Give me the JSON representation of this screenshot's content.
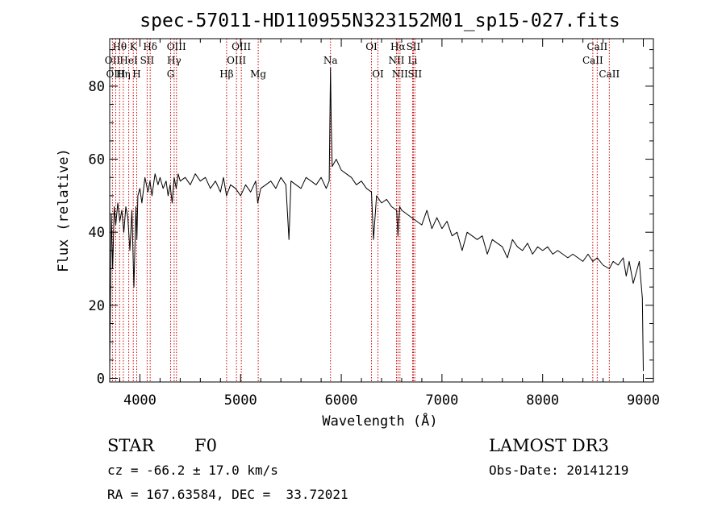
{
  "chart_data": {
    "type": "line",
    "title": "spec-57011-HD110955N323152M01_sp15-027.fits",
    "xlabel": "Wavelength (Å)",
    "ylabel": "Flux (relative)",
    "xlim": [
      3700,
      9100
    ],
    "ylim": [
      -1,
      93
    ],
    "xticks": [
      4000,
      5000,
      6000,
      7000,
      8000,
      9000
    ],
    "yticks": [
      0,
      20,
      40,
      60,
      80
    ],
    "grid": false,
    "series": [
      {
        "name": "spectrum",
        "x": [
          3700,
          3715,
          3730,
          3745,
          3760,
          3780,
          3800,
          3820,
          3840,
          3860,
          3880,
          3900,
          3920,
          3940,
          3960,
          3970,
          3980,
          4000,
          4020,
          4050,
          4080,
          4100,
          4120,
          4150,
          4180,
          4200,
          4230,
          4260,
          4280,
          4300,
          4320,
          4340,
          4360,
          4380,
          4400,
          4450,
          4500,
          4550,
          4600,
          4650,
          4700,
          4750,
          4800,
          4830,
          4860,
          4900,
          4950,
          5000,
          5050,
          5100,
          5150,
          5170,
          5200,
          5250,
          5300,
          5350,
          5400,
          5450,
          5480,
          5500,
          5550,
          5600,
          5650,
          5700,
          5750,
          5800,
          5850,
          5880,
          5893,
          5900,
          5910,
          5950,
          6000,
          6050,
          6100,
          6150,
          6200,
          6250,
          6300,
          6320,
          6350,
          6400,
          6450,
          6500,
          6550,
          6563,
          6580,
          6600,
          6650,
          6700,
          6750,
          6800,
          6850,
          6900,
          6950,
          7000,
          7050,
          7100,
          7150,
          7200,
          7250,
          7300,
          7350,
          7400,
          7450,
          7500,
          7550,
          7600,
          7650,
          7700,
          7750,
          7800,
          7850,
          7900,
          7950,
          8000,
          8050,
          8100,
          8150,
          8200,
          8250,
          8300,
          8350,
          8400,
          8450,
          8498,
          8542,
          8600,
          8662,
          8700,
          8750,
          8800,
          8830,
          8860,
          8900,
          8930,
          8960,
          8990,
          9000
        ],
        "values": [
          2,
          45,
          30,
          47,
          42,
          48,
          43,
          46,
          40,
          47,
          44,
          35,
          46,
          25,
          47,
          38,
          50,
          52,
          48,
          55,
          51,
          54,
          50,
          56,
          53,
          55,
          52,
          54,
          50,
          53,
          48,
          55,
          52,
          56,
          54,
          55,
          53,
          56,
          54,
          55,
          52,
          54,
          51,
          55,
          50,
          53,
          52,
          50,
          53,
          51,
          54,
          48,
          52,
          53,
          54,
          52,
          55,
          53,
          38,
          54,
          53,
          52,
          55,
          54,
          53,
          55,
          52,
          54,
          85,
          70,
          58,
          60,
          57,
          56,
          55,
          53,
          54,
          52,
          51,
          38,
          50,
          48,
          49,
          47,
          46,
          39,
          47,
          46,
          45,
          44,
          43,
          42,
          46,
          41,
          44,
          41,
          43,
          39,
          40,
          35,
          40,
          39,
          38,
          39,
          34,
          38,
          37,
          36,
          33,
          38,
          36,
          35,
          37,
          34,
          36,
          35,
          36,
          34,
          35,
          34,
          33,
          34,
          33,
          32,
          34,
          32,
          33,
          31,
          30,
          32,
          31,
          33,
          28,
          32,
          26,
          29,
          32,
          22,
          2
        ]
      }
    ],
    "line_labels": [
      {
        "text": "Hθ",
        "wavelength": 3798,
        "row": 1
      },
      {
        "text": "OII",
        "wavelength": 3727,
        "row": 2
      },
      {
        "text": "OIII",
        "wavelength": 3760,
        "row": 3
      },
      {
        "text": "K",
        "wavelength": 3934,
        "row": 1
      },
      {
        "text": "HeI",
        "wavelength": 3889,
        "row": 2
      },
      {
        "text": "Hη",
        "wavelength": 3835,
        "row": 3
      },
      {
        "text": "Hδ",
        "wavelength": 4102,
        "row": 1
      },
      {
        "text": "SII",
        "wavelength": 4072,
        "row": 2
      },
      {
        "text": "H",
        "wavelength": 3968,
        "row": 3
      },
      {
        "text": "OIII",
        "wavelength": 4363,
        "row": 1
      },
      {
        "text": "Hγ",
        "wavelength": 4340,
        "row": 2
      },
      {
        "text": "G",
        "wavelength": 4305,
        "row": 3
      },
      {
        "text": "OIII",
        "wavelength": 5007,
        "row": 1
      },
      {
        "text": "OIII",
        "wavelength": 4959,
        "row": 2
      },
      {
        "text": "Hβ",
        "wavelength": 4861,
        "row": 3
      },
      {
        "text": "Mg",
        "wavelength": 5175,
        "row": 3
      },
      {
        "text": "Na",
        "wavelength": 5893,
        "row": 2
      },
      {
        "text": "OI",
        "wavelength": 6300,
        "row": 1
      },
      {
        "text": "OI",
        "wavelength": 6364,
        "row": 3
      },
      {
        "text": "Hα",
        "wavelength": 6563,
        "row": 1
      },
      {
        "text": "SII",
        "wavelength": 6716,
        "row": 1
      },
      {
        "text": "NII",
        "wavelength": 6548,
        "row": 2
      },
      {
        "text": "Li",
        "wavelength": 6708,
        "row": 2
      },
      {
        "text": "NII",
        "wavelength": 6583,
        "row": 3
      },
      {
        "text": "SII",
        "wavelength": 6731,
        "row": 3
      },
      {
        "text": "CaII",
        "wavelength": 8542,
        "row": 1
      },
      {
        "text": "CaII",
        "wavelength": 8498,
        "row": 2
      },
      {
        "text": "CaII",
        "wavelength": 8662,
        "row": 3
      }
    ],
    "marker_lines": [
      3727,
      3760,
      3798,
      3835,
      3889,
      3934,
      3968,
      4072,
      4102,
      4305,
      4340,
      4363,
      4861,
      4959,
      5007,
      5175,
      5893,
      6300,
      6364,
      6548,
      6563,
      6583,
      6708,
      6716,
      6731,
      8498,
      8542,
      8662
    ],
    "colors": {
      "line": "#000000",
      "marker": "#cc0000",
      "axis": "#000000"
    }
  },
  "info": {
    "object_class": "STAR",
    "subclass": "F0",
    "survey": "LAMOST DR3",
    "redshift": "cz = -66.2 ± 17.0 km/s",
    "obs_date": "Obs-Date: 20141219",
    "coords": "RA = 167.63584, DEC =  33.72021"
  }
}
